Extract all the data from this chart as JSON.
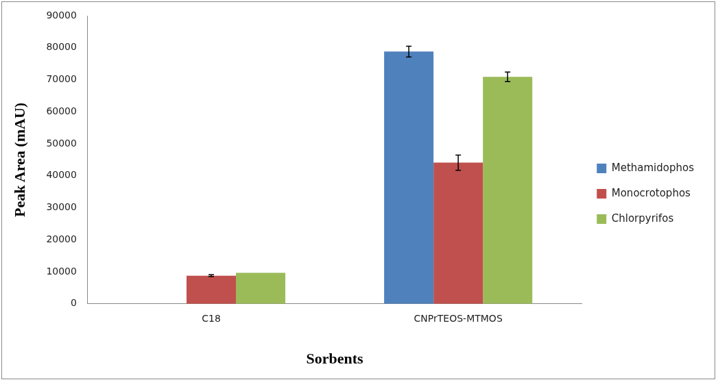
{
  "chart_data": {
    "type": "bar",
    "xlabel": "Sorbents",
    "ylabel": "Peak Area (mAU)",
    "categories": [
      "C18",
      "CNPrTEOS-MTMOS"
    ],
    "series": [
      {
        "name": "Methamidophos",
        "color": "#4f81bd",
        "values": [
          0,
          78800
        ],
        "errors": [
          null,
          1700
        ]
      },
      {
        "name": "Monocrotophos",
        "color": "#c0504d",
        "values": [
          8800,
          44100
        ],
        "errors": [
          300,
          2400
        ]
      },
      {
        "name": "Chlorpyrifos",
        "color": "#9bbb59",
        "values": [
          9700,
          70900
        ],
        "errors": [
          null,
          1500
        ]
      }
    ],
    "ylim": [
      0,
      90000
    ],
    "yticks": [
      0,
      10000,
      20000,
      30000,
      40000,
      50000,
      60000,
      70000,
      80000,
      90000
    ],
    "grid": false,
    "legend": "right"
  }
}
